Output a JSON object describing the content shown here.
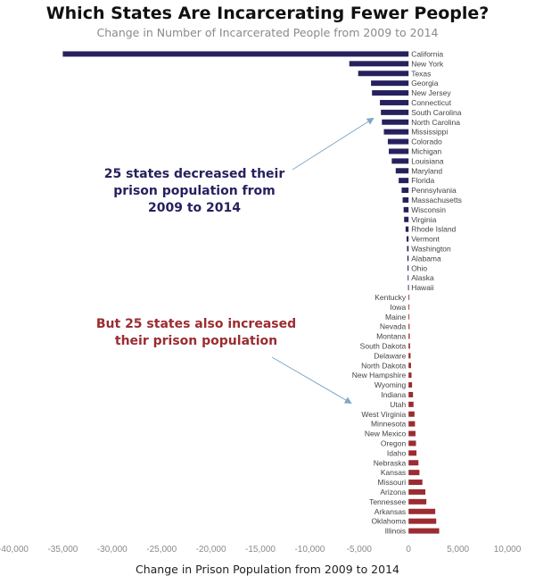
{
  "chart_data": {
    "type": "bar",
    "orientation": "horizontal",
    "title": "Which States Are Incarcerating Fewer People?",
    "subtitle": "Change in Number of Incarcerated People from 2009 to 2014",
    "xlabel": "Change in Prison Population from 2009 to 2014",
    "ylabel": "",
    "xlim": [
      -40000,
      10000
    ],
    "xticks": [
      "-40,000",
      "-35,000",
      "-30,000",
      "-25,000",
      "-20,000",
      "-15,000",
      "-10,000",
      "-5,000",
      "0",
      "5,000",
      "10,000"
    ],
    "xtick_values": [
      -40000,
      -35000,
      -30000,
      -25000,
      -20000,
      -15000,
      -10000,
      -5000,
      0,
      5000,
      10000
    ],
    "grid": false,
    "colors": {
      "decrease": "#26215e",
      "increase": "#9b2c31"
    },
    "categories": [
      "California",
      "New York",
      "Texas",
      "Georgia",
      "New Jersey",
      "Connecticut",
      "South Carolina",
      "North Carolina",
      "Mississippi",
      "Colorado",
      "Michigan",
      "Louisiana",
      "Maryland",
      "Florida",
      "Pennsylvania",
      "Massachusetts",
      "Wisconsin",
      "Virginia",
      "Rhode Island",
      "Vermont",
      "Washington",
      "Alabama",
      "Ohio",
      "Alaska",
      "Hawaii",
      "Kentucky",
      "Iowa",
      "Maine",
      "Nevada",
      "Montana",
      "South Dakota",
      "Delaware",
      "North Dakota",
      "New Hampshire",
      "Wyoming",
      "Indiana",
      "Utah",
      "West Virginia",
      "Minnesota",
      "New Mexico",
      "Oregon",
      "Idaho",
      "Nebraska",
      "Kansas",
      "Missouri",
      "Arizona",
      "Tennessee",
      "Arkansas",
      "Oklahoma",
      "Illinois"
    ],
    "values": [
      -35000,
      -6000,
      -5100,
      -3800,
      -3700,
      -2900,
      -2800,
      -2700,
      -2500,
      -2100,
      -2000,
      -1700,
      -1300,
      -1000,
      -700,
      -600,
      -500,
      -450,
      -300,
      -200,
      -150,
      -120,
      -100,
      -80,
      -50,
      50,
      60,
      80,
      100,
      120,
      150,
      200,
      250,
      300,
      350,
      450,
      500,
      600,
      650,
      700,
      750,
      800,
      1000,
      1100,
      1400,
      1700,
      1800,
      2700,
      2800,
      3100
    ]
  },
  "annotations": {
    "decreased": [
      "25 states decreased their",
      "prison population from",
      "2009 to 2014"
    ],
    "increased": [
      "But 25 states also increased",
      "their prison population"
    ]
  }
}
